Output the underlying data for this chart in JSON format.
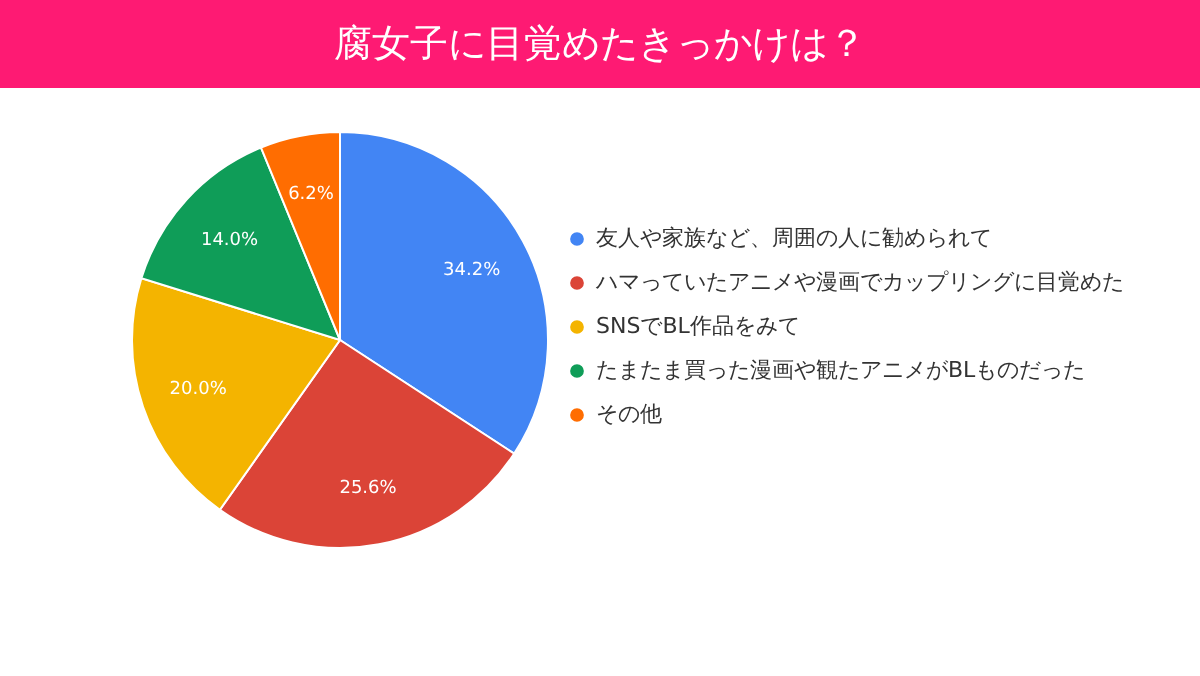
{
  "chart_data": {
    "type": "pie",
    "title": "腐女子に目覚めたきっかけは？",
    "categories": [
      "友人や家族など、周囲の人に勧められて",
      "ハマっていたアニメや漫画でカップリングに目覚めた",
      "SNSでBL作品をみて",
      "たまたま買った漫画や観たアニメがBLものだった",
      "その他"
    ],
    "values": [
      34.2,
      25.6,
      20.0,
      14.0,
      6.2
    ],
    "colors": [
      "#4285f4",
      "#db4437",
      "#f4b400",
      "#0f9d58",
      "#ff6d01"
    ],
    "value_labels": [
      "34.2%",
      "25.6%",
      "20.0%",
      "14.0%",
      "6.2%"
    ],
    "legend": "right"
  }
}
